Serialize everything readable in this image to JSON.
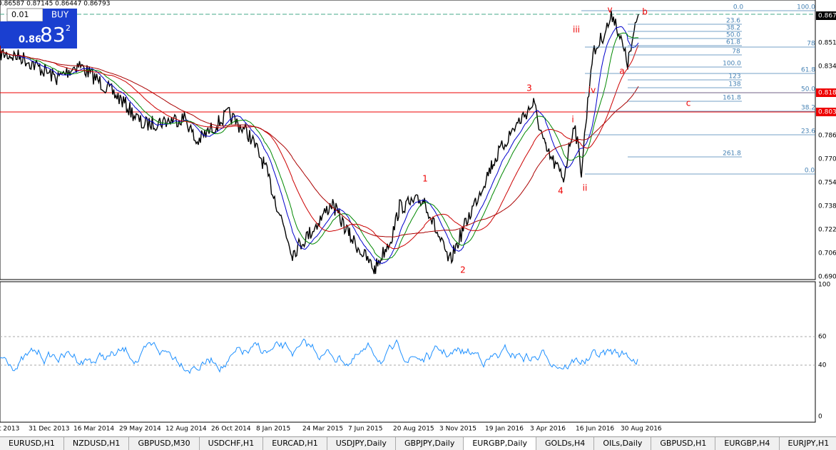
{
  "header": {
    "quote": "0.86587 0.87145 0.86447 0.86793"
  },
  "trade_panel": {
    "lot": "0.01",
    "buy": "BUY",
    "price_big": "0.86",
    "price_pips": "83",
    "price_frac": "2"
  },
  "price_axis": [
    "0.867",
    "0.851",
    "0.834",
    "0.818",
    "0.803",
    "0.786",
    "0.770",
    "0.754",
    "0.738",
    "0.722",
    "0.706",
    "0.690"
  ],
  "rsi_axis": [
    "100",
    "60",
    "40",
    "0"
  ],
  "dates": [
    "t 2013",
    "31 Dec 2013",
    "16 Mar 2014",
    "29 May 2014",
    "12 Aug 2014",
    "26 Oct 2014",
    "8 Jan 2015",
    "24 Mar 2015",
    "7 Jun 2015",
    "20 Aug 2015",
    "3 Nov 2015",
    "19 Jan 2016",
    "3 Apr 2016",
    "16 Jun 2016",
    "30 Aug 2016"
  ],
  "fib_labels": [
    "0.0",
    "100.0",
    "23.6",
    "38.2",
    "50.0",
    "61.8",
    "78",
    "78",
    "100.0",
    "61.8",
    "123",
    "50.0",
    "138",
    "161.8",
    "38.2",
    "23.6",
    "261.8",
    "0.0"
  ],
  "wave_labels": [
    "v",
    "b",
    "iii",
    "a",
    "iv",
    "3",
    "c",
    "i",
    "1",
    "4",
    "ii",
    "2"
  ],
  "tabs": [
    "EURUSD,H1",
    "NZDUSD,H1",
    "GBPUSD,M30",
    "USDCHF,H1",
    "EURCAD,H1",
    "USDJPY,Daily",
    "GBPJPY,Daily",
    "EURGBP,Daily",
    "GOLDs,H4",
    "OILs,Daily",
    "GBPUSD,H1",
    "EURGBP,H4",
    "EURJPY,H1",
    "EURC"
  ]
}
